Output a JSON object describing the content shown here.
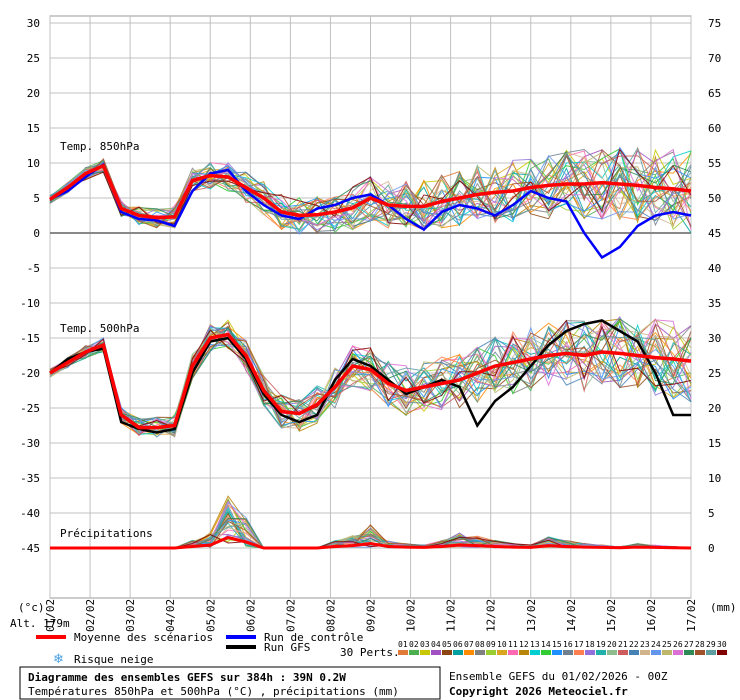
{
  "chart_data": {
    "type": "line",
    "left_axis_ticks": [
      "30",
      "25",
      "20",
      "15",
      "10",
      "5",
      "0",
      "-5",
      "-10",
      "-15",
      "-20",
      "-25",
      "-30",
      "-35",
      "-40",
      "-45"
    ],
    "right_axis_ticks": [
      "75",
      "70",
      "65",
      "60",
      "55",
      "50",
      "45",
      "40",
      "35",
      "30",
      "25",
      "20",
      "15",
      "10",
      "5",
      "0"
    ],
    "left_unit": "(°c)",
    "right_unit": "(mm)",
    "x_ticks": [
      "01/02",
      "02/02",
      "03/02",
      "04/02",
      "05/02",
      "06/02",
      "07/02",
      "08/02",
      "09/02",
      "10/02",
      "11/02",
      "12/02",
      "13/02",
      "14/02",
      "15/02",
      "16/02",
      "17/02"
    ],
    "panel_labels": {
      "t850": "Temp. 850hPa",
      "t500": "Temp. 500hPa",
      "precip": "Précipitations"
    },
    "altitude": "Alt. 179m",
    "series": [
      {
        "name": "Moyenne des scénarios",
        "color": "#ff0000"
      },
      {
        "name": "Run de contrôle",
        "color": "#0000ff"
      },
      {
        "name": "Run GFS",
        "color": "#000000"
      }
    ],
    "snow_risk_label": "Risque neige",
    "perturbations_label": "30 Perts.",
    "perturbations": [
      "01",
      "02",
      "03",
      "04",
      "05",
      "06",
      "07",
      "08",
      "09",
      "10",
      "11",
      "12",
      "13",
      "14",
      "15",
      "16",
      "17",
      "18",
      "19",
      "20",
      "21",
      "22",
      "23",
      "24",
      "25",
      "26",
      "27",
      "28",
      "29",
      "30"
    ],
    "pert_colors": [
      "#e07b39",
      "#4caf50",
      "#c8c800",
      "#a050c0",
      "#8b4513",
      "#00a0a0",
      "#ff8c00",
      "#808080",
      "#9acd32",
      "#daa520",
      "#ff69b4",
      "#b8860b",
      "#00ced1",
      "#32cd32",
      "#1e90ff",
      "#708090",
      "#ff7f50",
      "#9370db",
      "#20b2aa",
      "#8fbc8f",
      "#cd5c5c",
      "#4682b4",
      "#d2b48c",
      "#6495ed",
      "#bdb76b",
      "#da70d6",
      "#2e8b57",
      "#a0522d",
      "#5f9ea0",
      "#800000"
    ],
    "mean_t850": [
      4.8,
      6.5,
      8.5,
      9.6,
      3.5,
      2.5,
      2.2,
      2.3,
      7.5,
      8.2,
      8.0,
      6.5,
      5.0,
      3.0,
      2.5,
      2.6,
      3.0,
      3.6,
      5.0,
      4.0,
      3.8,
      3.8,
      4.5,
      5.0,
      5.5,
      5.8,
      6.0,
      6.5,
      6.8,
      7.0,
      7.0,
      7.2,
      7.0,
      6.8,
      6.5,
      6.3,
      6.0
    ],
    "mean_t500": [
      -20.0,
      -18.5,
      -17.0,
      -16.0,
      -26.0,
      -27.8,
      -27.8,
      -27.5,
      -19.0,
      -15.0,
      -14.5,
      -17.5,
      -22.5,
      -25.5,
      -25.8,
      -24.5,
      -22.0,
      -19.0,
      -19.5,
      -21.5,
      -22.5,
      -22.0,
      -21.5,
      -21.0,
      -20.0,
      -19.0,
      -18.5,
      -18.0,
      -17.5,
      -17.2,
      -17.5,
      -17.0,
      -17.2,
      -17.5,
      -17.8,
      -18.0,
      -18.3
    ],
    "control_t850": [
      4.8,
      6.0,
      8.0,
      9.8,
      3.0,
      2.0,
      1.8,
      1.0,
      6.0,
      8.5,
      9.0,
      6.0,
      4.0,
      2.5,
      2.0,
      3.5,
      4.0,
      5.0,
      5.5,
      4.0,
      2.0,
      0.5,
      3.0,
      4.0,
      3.5,
      2.5,
      4.0,
      6.0,
      5.0,
      4.5,
      0.0,
      -3.5,
      -2.0,
      1.0,
      2.5,
      3.0,
      2.5
    ],
    "gfs_t500": [
      -20.0,
      -18.0,
      -17.0,
      -16.5,
      -27.0,
      -28.0,
      -28.5,
      -28.0,
      -20.0,
      -15.5,
      -15.0,
      -18.0,
      -23.0,
      -26.0,
      -27.0,
      -26.0,
      -21.0,
      -18.0,
      -19.0,
      -21.0,
      -23.0,
      -22.0,
      -21.0,
      -22.0,
      -27.5,
      -24.0,
      -22.0,
      -19.0,
      -16.0,
      -14.0,
      -13.0,
      -12.5,
      -14.0,
      -15.5,
      -20.0,
      -26.0,
      -26.0
    ],
    "precip_peaks": [
      0,
      0,
      0,
      0,
      0,
      0,
      0,
      0,
      0.5,
      1.0,
      3.5,
      2.0,
      0,
      0,
      0,
      0,
      0.5,
      0.8,
      1.5,
      0.5,
      0.3,
      0.2,
      0.5,
      1.0,
      0.8,
      0.5,
      0.3,
      0.2,
      0.8,
      0.5,
      0.3,
      0.2,
      0.1,
      0.3,
      0.2,
      0.1,
      0
    ]
  },
  "title_box": {
    "title": "Diagramme des ensembles GEFS sur 384h : 39N 0.2W",
    "subtitle": "Températures 850hPa et 500hPa (°C) , précipitations (mm)"
  },
  "credits": {
    "run": "Ensemble GEFS du 01/02/2026 - 00Z",
    "copyright": "Copyright 2026 Meteociel.fr"
  }
}
